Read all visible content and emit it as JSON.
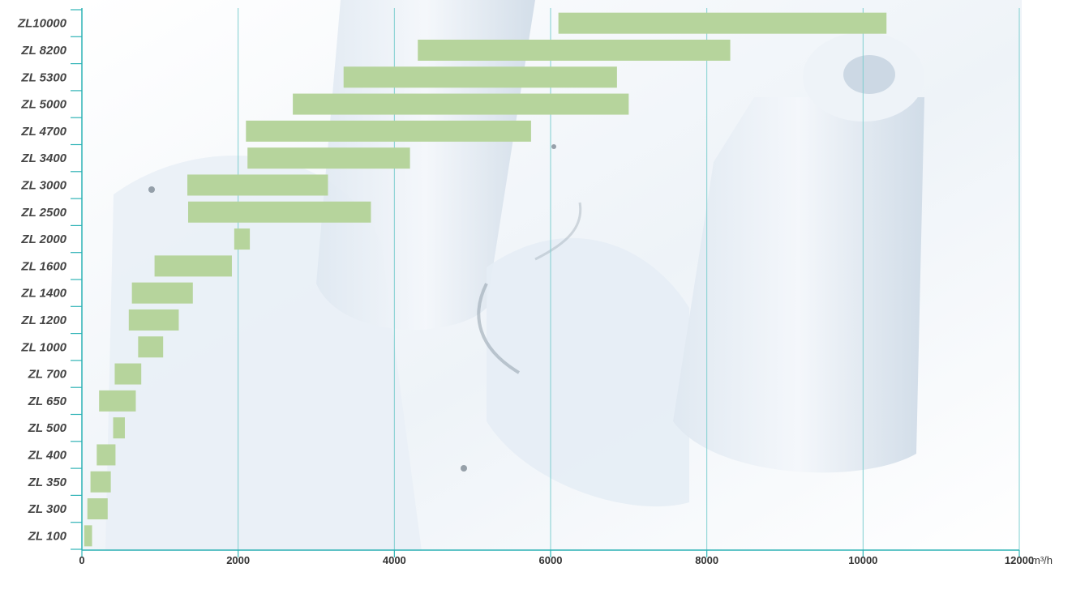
{
  "chart_data": {
    "type": "bar",
    "orientation": "horizontal-range",
    "title": "",
    "xlabel": "",
    "ylabel": "",
    "unit": "m³/h",
    "xlim": [
      0,
      12000
    ],
    "x_ticks": [
      0,
      2000,
      4000,
      6000,
      8000,
      10000,
      12000
    ],
    "grid": "vertical",
    "categories": [
      "ZL10000",
      "ZL 8200",
      "ZL 5300",
      "ZL 5000",
      "ZL 4700",
      "ZL 3400",
      "ZL 3000",
      "ZL 2500",
      "ZL 2000",
      "ZL 1600",
      "ZL 1400",
      "ZL 1200",
      "ZL 1000",
      "ZL 700",
      "ZL 650",
      "ZL 500",
      "ZL 400",
      "ZL 350",
      "ZL 300",
      "ZL 100"
    ],
    "ranges": [
      [
        6100,
        10300
      ],
      [
        4300,
        8300
      ],
      [
        3350,
        6850
      ],
      [
        2700,
        7000
      ],
      [
        2100,
        5750
      ],
      [
        2120,
        4200
      ],
      [
        1350,
        3150
      ],
      [
        1360,
        3700
      ],
      [
        1950,
        2150
      ],
      [
        930,
        1920
      ],
      [
        640,
        1420
      ],
      [
        600,
        1240
      ],
      [
        720,
        1040
      ],
      [
        420,
        760
      ],
      [
        220,
        690
      ],
      [
        400,
        550
      ],
      [
        190,
        430
      ],
      [
        110,
        370
      ],
      [
        70,
        330
      ],
      [
        30,
        130
      ]
    ]
  },
  "colors": {
    "bar": "#b6d49c",
    "grid": "#7fcfd0",
    "axis": "#2fb3b6",
    "label": "#444444"
  }
}
